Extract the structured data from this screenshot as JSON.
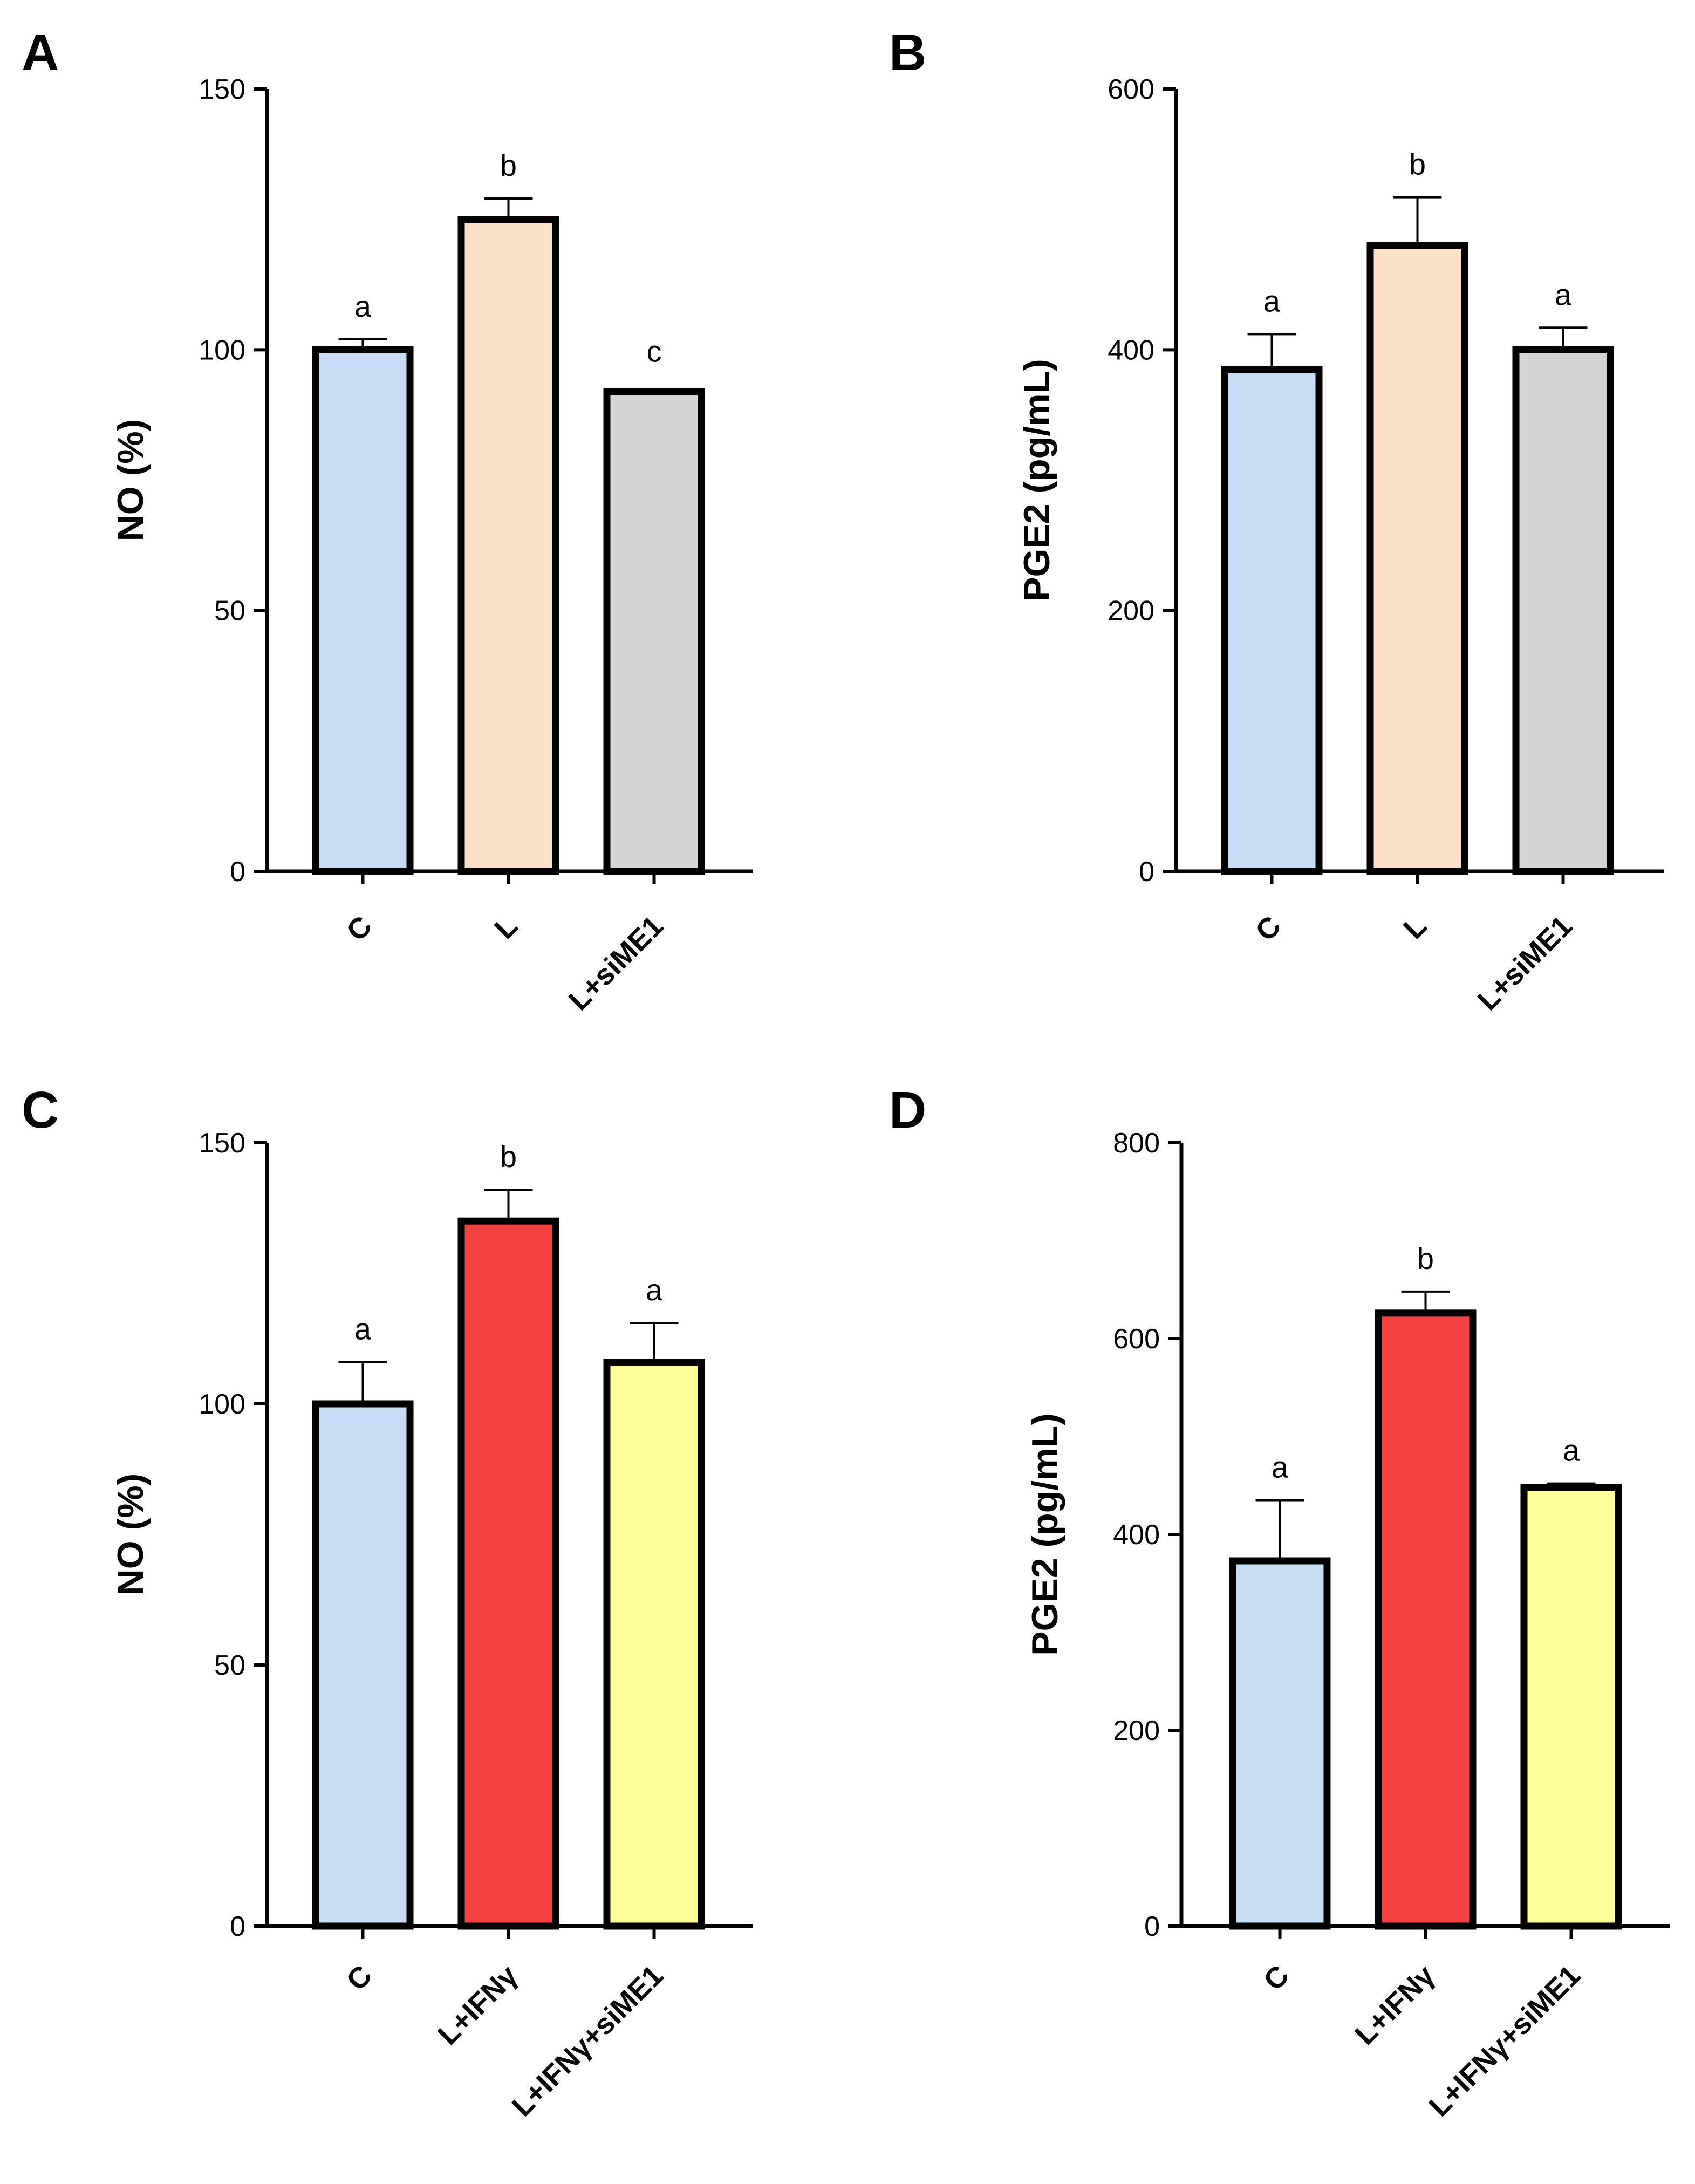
{
  "chart_data": [
    {
      "panel": "A",
      "type": "bar",
      "ylabel": "NO (%)",
      "ylim": [
        0,
        150
      ],
      "yticks": [
        0,
        50,
        100,
        150
      ],
      "categories": [
        "C",
        "L",
        "L+siME1"
      ],
      "values": [
        100,
        125,
        92
      ],
      "errors": [
        2,
        4,
        0
      ],
      "colors": [
        "#c9dcf5",
        "#fde0c8",
        "#d4d4d4"
      ],
      "significance": [
        "a",
        "b",
        "c"
      ]
    },
    {
      "panel": "B",
      "type": "bar",
      "ylabel": "PGE2 (pg/mL)",
      "ylim": [
        0,
        600
      ],
      "yticks": [
        0,
        200,
        400,
        600
      ],
      "categories": [
        "C",
        "L",
        "L+siME1"
      ],
      "values": [
        385,
        480,
        400
      ],
      "errors": [
        27,
        37,
        17
      ],
      "colors": [
        "#c9dcf5",
        "#fde0c8",
        "#d4d4d4"
      ],
      "significance": [
        "a",
        "b",
        "a"
      ]
    },
    {
      "panel": "C",
      "type": "bar",
      "ylabel": "NO (%)",
      "ylim": [
        0,
        150
      ],
      "yticks": [
        0,
        50,
        100,
        150
      ],
      "categories": [
        "C",
        "L+IFNγ",
        "L+IFNγ+siME1"
      ],
      "values": [
        100,
        135,
        108
      ],
      "errors": [
        8,
        6,
        7.5
      ],
      "colors": [
        "#c9dcf5",
        "#f44141",
        "#fdfd9a"
      ],
      "significance": [
        "a",
        "b",
        "a"
      ]
    },
    {
      "panel": "D",
      "type": "bar",
      "ylabel": "PGE2 (pg/mL)",
      "ylim": [
        0,
        800
      ],
      "yticks": [
        0,
        200,
        400,
        600,
        800
      ],
      "categories": [
        "C",
        "L+IFNγ",
        "L+IFNγ+siME1"
      ],
      "values": [
        373,
        626,
        448
      ],
      "errors": [
        62,
        22,
        4
      ],
      "colors": [
        "#c9dcf5",
        "#f44141",
        "#fdfd9a"
      ],
      "significance": [
        "a",
        "b",
        "a"
      ]
    }
  ]
}
